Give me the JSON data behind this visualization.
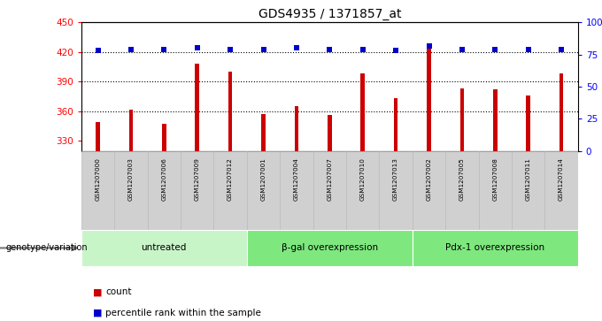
{
  "title": "GDS4935 / 1371857_at",
  "samples": [
    "GSM1207000",
    "GSM1207003",
    "GSM1207006",
    "GSM1207009",
    "GSM1207012",
    "GSM1207001",
    "GSM1207004",
    "GSM1207007",
    "GSM1207010",
    "GSM1207013",
    "GSM1207002",
    "GSM1207005",
    "GSM1207008",
    "GSM1207011",
    "GSM1207014"
  ],
  "counts": [
    349,
    362,
    347,
    408,
    400,
    357,
    365,
    356,
    398,
    373,
    426,
    383,
    382,
    376,
    398
  ],
  "percentiles": [
    78,
    79,
    79,
    80,
    79,
    79,
    80,
    79,
    79,
    78,
    82,
    79,
    79,
    79,
    79
  ],
  "groups": [
    {
      "label": "untreated",
      "start": 0,
      "end": 5,
      "color": "#c8f5c8"
    },
    {
      "label": "β-gal overexpression",
      "start": 5,
      "end": 10,
      "color": "#7ee87e"
    },
    {
      "label": "Pdx-1 overexpression",
      "start": 10,
      "end": 15,
      "color": "#7ee87e"
    }
  ],
  "ylim_left": [
    320,
    450
  ],
  "ylim_right": [
    0,
    100
  ],
  "yticks_left": [
    330,
    360,
    390,
    420,
    450
  ],
  "yticks_right": [
    0,
    25,
    50,
    75,
    100
  ],
  "bar_color": "#cc0000",
  "dot_color": "#0000cc",
  "cell_color": "#d0d0d0",
  "cell_border_color": "#bbbbbb",
  "grid_values": [
    360,
    390,
    420
  ],
  "legend_count_label": "count",
  "legend_pct_label": "percentile rank within the sample",
  "genotype_label": "genotype/variation",
  "bar_width": 0.12
}
